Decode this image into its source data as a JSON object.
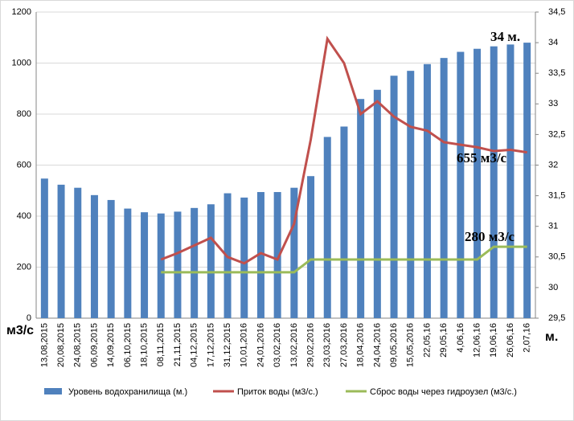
{
  "chart_data": {
    "type": "bar-line",
    "categories": [
      "13,08,2015",
      "20,08,2015",
      "24,08,2015",
      "06,09,2015",
      "14,09,2015",
      "06,10,2015",
      "18,10,2015",
      "08,11,2015",
      "21,11,2015",
      "04,12,2015",
      "17,12,2015",
      "31,12,2015",
      "10,01,2016",
      "24,01,2016",
      "03,02,2016",
      "13,02,2016",
      "29,02,2016",
      "23,03,2016",
      "27,03,2016",
      "18,04,2016",
      "24,04,2016",
      "09,05,2016",
      "15,05,2016",
      "22,05,16",
      "29,05,16",
      "4,06,16",
      "12,06,16",
      "19,06,16",
      "26,06,16",
      "2,07,16"
    ],
    "series": [
      {
        "name": "Уровень водохранилища (м.)",
        "kind": "bar",
        "axis": "y2",
        "color": "#4f81bd",
        "values": [
          31.78,
          31.68,
          31.63,
          31.51,
          31.43,
          31.29,
          31.23,
          31.21,
          31.24,
          31.3,
          31.36,
          31.54,
          31.47,
          31.56,
          31.56,
          31.63,
          31.82,
          32.46,
          32.63,
          33.08,
          33.23,
          33.46,
          33.54,
          33.65,
          33.75,
          33.85,
          33.9,
          33.94,
          33.97,
          34.0
        ]
      },
      {
        "name": "Приток воды (м3/с.)",
        "kind": "line",
        "color": "#c0504d",
        "values": [
          null,
          null,
          null,
          null,
          null,
          null,
          null,
          230,
          255,
          285,
          315,
          240,
          215,
          255,
          230,
          370,
          700,
          1095,
          1000,
          800,
          850,
          790,
          750,
          735,
          690,
          680,
          670,
          655,
          660,
          650
        ]
      },
      {
        "name": "Сброс воды через гидроузел (м3/с.)",
        "kind": "line",
        "color": "#9bbb59",
        "values": [
          null,
          null,
          null,
          null,
          null,
          null,
          null,
          180,
          180,
          180,
          180,
          180,
          180,
          180,
          180,
          180,
          230,
          230,
          230,
          230,
          230,
          230,
          230,
          230,
          230,
          230,
          230,
          280,
          280,
          280
        ]
      }
    ],
    "ylim": [
      0,
      1200
    ],
    "yticks": [
      0,
      200,
      400,
      600,
      800,
      1000,
      1200
    ],
    "y2lim": [
      29.5,
      34.5
    ],
    "y2ticks": [
      {
        "value": 29.5,
        "label": "29,5"
      },
      30,
      {
        "value": 30.5,
        "label": "30,5"
      },
      31,
      {
        "value": 31.5,
        "label": "31,5"
      },
      32,
      {
        "value": 32.5,
        "label": "32,5"
      },
      33,
      {
        "value": 33.5,
        "label": "33,5"
      },
      34,
      {
        "value": 34.5,
        "label": "34,5"
      }
    ],
    "ylabel": "м3/с",
    "y2label": "м.",
    "annotations": [
      "34 м.",
      "655 м3/с",
      "280 м3/с"
    ],
    "grid": true
  }
}
